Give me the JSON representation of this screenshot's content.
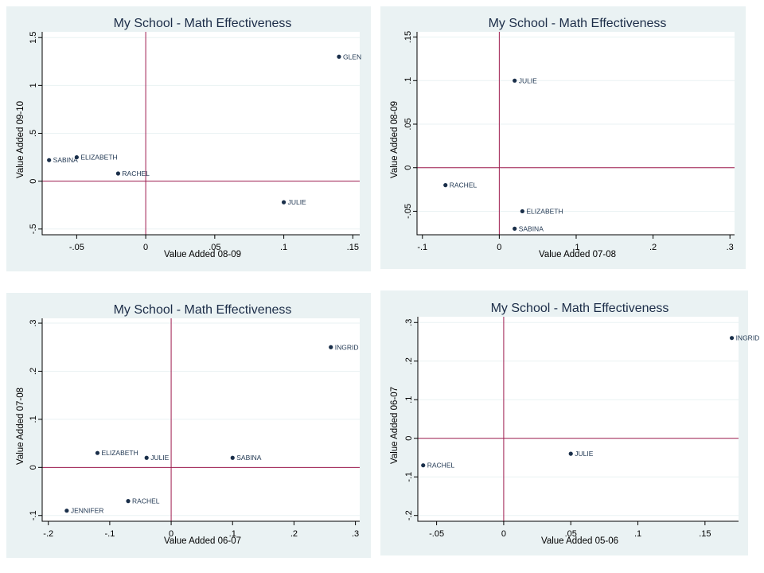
{
  "colors": {
    "panel_bg": "#eaf2f3",
    "plot_bg": "#ffffff",
    "grid": "#eaf2f3",
    "reference_line": "#9e1b4e",
    "marker": "#1a2f4a",
    "title": "#1c2d48"
  },
  "chart_data": [
    {
      "type": "scatter",
      "title": "My School - Math Effectiveness",
      "xlabel": "Value Added 08-09",
      "ylabel": "Value Added 09-10",
      "xlim": [
        -0.075,
        0.155
      ],
      "ylim": [
        -0.56,
        1.56
      ],
      "xticks": [
        -0.05,
        0,
        0.05,
        0.1,
        0.15
      ],
      "xtick_labels": [
        "-.05",
        "0",
        ".05",
        ".1",
        ".15"
      ],
      "yticks": [
        -0.5,
        0,
        0.5,
        1,
        1.5
      ],
      "ytick_labels": [
        "-.5",
        "0",
        ".5",
        "1",
        "1.5"
      ],
      "reference_lines": {
        "x": 0,
        "y": 0
      },
      "grid": true,
      "points": [
        {
          "label": "GLEN",
          "x": 0.14,
          "y": 1.3
        },
        {
          "label": "SABINA",
          "x": -0.07,
          "y": 0.22
        },
        {
          "label": "ELIZABETH",
          "x": -0.05,
          "y": 0.25
        },
        {
          "label": "RACHEL",
          "x": -0.02,
          "y": 0.08
        },
        {
          "label": "JULIE",
          "x": 0.1,
          "y": -0.22
        }
      ]
    },
    {
      "type": "scatter",
      "title": "My School - Math Effectiveness",
      "xlabel": "Value Added 07-08",
      "ylabel": "Value Added 08-09",
      "xlim": [
        -0.107,
        0.306
      ],
      "ylim": [
        -0.077,
        0.156
      ],
      "xticks": [
        -0.1,
        0,
        0.1,
        0.2,
        0.3
      ],
      "xtick_labels": [
        "-.1",
        "0",
        ".1",
        ".2",
        ".3"
      ],
      "yticks": [
        -0.05,
        0,
        0.05,
        0.1,
        0.15
      ],
      "ytick_labels": [
        "-.05",
        "0",
        ".05",
        ".1",
        ".15"
      ],
      "reference_lines": {
        "x": 0,
        "y": 0
      },
      "grid": true,
      "points": [
        {
          "label": "JULIE",
          "x": 0.02,
          "y": 0.1
        },
        {
          "label": "RACHEL",
          "x": -0.07,
          "y": -0.02
        },
        {
          "label": "ELIZABETH",
          "x": 0.03,
          "y": -0.05
        },
        {
          "label": "SABINA",
          "x": 0.02,
          "y": -0.07
        }
      ]
    },
    {
      "type": "scatter",
      "title": "My School - Math Effectiveness",
      "xlabel": "Value Added 06-07",
      "ylabel": "Value Added 07-08",
      "xlim": [
        -0.21,
        0.307
      ],
      "ylim": [
        -0.112,
        0.31
      ],
      "xticks": [
        -0.2,
        -0.1,
        0,
        0.1,
        0.2,
        0.3
      ],
      "xtick_labels": [
        "-.2",
        "-.1",
        "0",
        ".1",
        ".2",
        ".3"
      ],
      "yticks": [
        -0.1,
        0,
        0.1,
        0.2,
        0.3
      ],
      "ytick_labels": [
        "-.1",
        "0",
        ".1",
        ".2",
        ".3"
      ],
      "reference_lines": {
        "x": 0,
        "y": 0
      },
      "grid": true,
      "points": [
        {
          "label": "INGRID",
          "x": 0.26,
          "y": 0.25
        },
        {
          "label": "ELIZABETH",
          "x": -0.12,
          "y": 0.03
        },
        {
          "label": "JULIE",
          "x": -0.04,
          "y": 0.02
        },
        {
          "label": "SABINA",
          "x": 0.1,
          "y": 0.02
        },
        {
          "label": "RACHEL",
          "x": -0.07,
          "y": -0.07
        },
        {
          "label": "JENNIFER",
          "x": -0.17,
          "y": -0.09
        }
      ]
    },
    {
      "type": "scatter",
      "title": "My School - Math Effectiveness",
      "xlabel": "Value Added 05-06",
      "ylabel": "Value Added 06-07",
      "xlim": [
        -0.064,
        0.175
      ],
      "ylim": [
        -0.215,
        0.315
      ],
      "xticks": [
        -0.05,
        0,
        0.05,
        0.1,
        0.15
      ],
      "xtick_labels": [
        "-.05",
        "0",
        ".05",
        ".1",
        ".15"
      ],
      "yticks": [
        -0.2,
        -0.1,
        0,
        0.1,
        0.2,
        0.3
      ],
      "ytick_labels": [
        "-.2",
        "-.1",
        "0",
        ".1",
        ".2",
        ".3"
      ],
      "reference_lines": {
        "x": 0,
        "y": 0
      },
      "grid": true,
      "points": [
        {
          "label": "INGRID",
          "x": 0.17,
          "y": 0.26
        },
        {
          "label": "JULIE",
          "x": 0.05,
          "y": -0.04
        },
        {
          "label": "RACHEL",
          "x": -0.06,
          "y": -0.07
        }
      ]
    }
  ]
}
